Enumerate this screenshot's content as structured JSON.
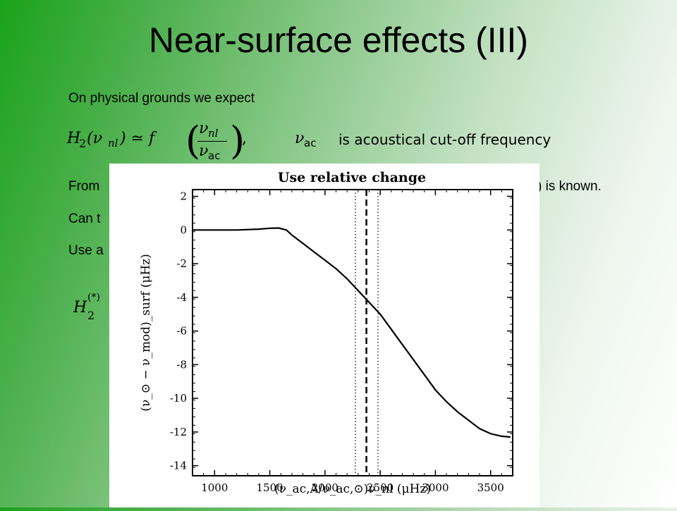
{
  "slide": {
    "title": "Near-surface effects (III)",
    "line1": "On physical grounds we expect",
    "formula_lhs_H": "H",
    "formula_lhs_sub": "2",
    "formula_lhs_arg": "(ν",
    "formula_lhs_nl": "nl",
    "formula_rel": ") ≃ f",
    "formula_frac_num": "ν",
    "formula_frac_num_sub": "nl",
    "formula_frac_den": "ν",
    "formula_frac_den_sub": "ac",
    "formula_comma": ",",
    "formula_nuac": "ν",
    "formula_nuac_sub": "ac",
    "formula_desc": "is acoustical cut-off frequency",
    "line2_start": "From",
    "line2_end": ") is known.",
    "line3_start": "Can t",
    "line4_start": "Use a",
    "h2star_H": "H",
    "h2star_sub": "2",
    "h2star_sup": "(*)"
  },
  "chart_data": {
    "type": "line",
    "title": "Use relative change",
    "xlabel": "(ν_ac,A/ν_ac,⊙)ν_nl (μHz)",
    "ylabel": "(ν_⊙ − ν_mod)_surf (μHz)",
    "xlim": [
      800,
      3700
    ],
    "ylim": [
      -14.6,
      2.4
    ],
    "xticks": [
      "1000",
      "1500",
      "2000",
      "2500",
      "3000",
      "3500"
    ],
    "yticks": [
      "2",
      "0",
      "-2",
      "-4",
      "-6",
      "-8",
      "-10",
      "-12",
      "-14"
    ],
    "ytick_values": [
      2,
      0,
      -2,
      -4,
      -6,
      -8,
      -10,
      -12,
      -14
    ],
    "xtick_values": [
      1000,
      1500,
      2000,
      2500,
      3000,
      3500
    ],
    "series": [
      {
        "x": [
          800,
          1000,
          1200,
          1400,
          1500,
          1580,
          1650,
          1700,
          1800,
          1900,
          2000,
          2100,
          2200,
          2300,
          2400,
          2500,
          2600,
          2700,
          2800,
          2900,
          3000,
          3100,
          3200,
          3300,
          3400,
          3500,
          3600,
          3680
        ],
        "y": [
          0.0,
          0.0,
          0.0,
          0.05,
          0.1,
          0.12,
          0.0,
          -0.3,
          -0.8,
          -1.3,
          -1.8,
          -2.3,
          -2.9,
          -3.6,
          -4.3,
          -5.0,
          -5.9,
          -6.8,
          -7.7,
          -8.6,
          -9.5,
          -10.2,
          -10.8,
          -11.3,
          -11.8,
          -12.1,
          -12.25,
          -12.3
        ]
      }
    ],
    "vlines": [
      {
        "x": 2275,
        "style": "dotted"
      },
      {
        "x": 2375,
        "style": "dashed"
      },
      {
        "x": 2480,
        "style": "dotted"
      }
    ]
  }
}
